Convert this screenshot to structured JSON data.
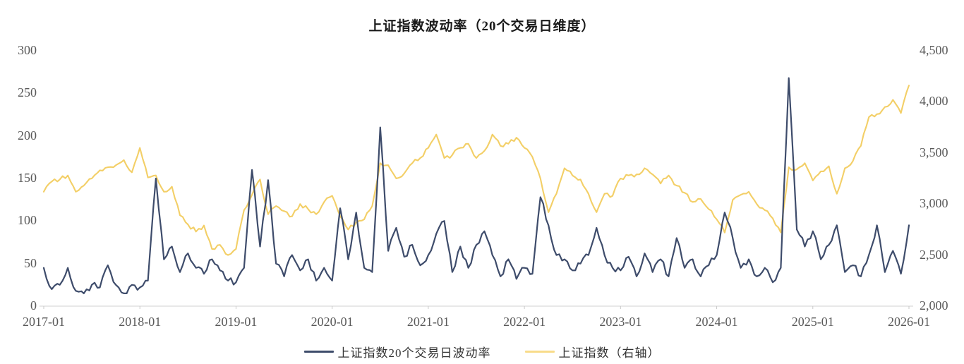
{
  "title": "上证指数波动率（20个交易日维度）",
  "colors": {
    "volatility_line": "#3E4C6B",
    "index_line": "#F3CF67",
    "index_legend_swatch": "#F8DC8A",
    "axis_text": "#595959",
    "axis_line": "#D9D9D9",
    "tick_mark": "#C9C9C9",
    "background": "#FFFFFF",
    "title_text": "#1A1A1A"
  },
  "chart_data": {
    "type": "line",
    "title": "上证指数波动率（20个交易日维度）",
    "grid": false,
    "legend_position": "bottom",
    "x_start": "2017-01",
    "x_end": "2026-01",
    "points_per_year": 12,
    "x_tick_labels": [
      "2017-01",
      "2018-01",
      "2019-01",
      "2020-01",
      "2021-01",
      "2022-01",
      "2023-01",
      "2024-01",
      "2025-01",
      "2026-01"
    ],
    "left_axis": {
      "side": "left",
      "range": [
        0,
        300
      ],
      "tick_step": 50,
      "tick_labels": [
        "0",
        "50",
        "100",
        "150",
        "200",
        "250",
        "300"
      ]
    },
    "right_axis": {
      "side": "right",
      "range": [
        2000,
        4500
      ],
      "tick_step": 500,
      "tick_labels": [
        "2,000",
        "2,500",
        "3,000",
        "3,500",
        "4,000",
        "4,500"
      ]
    },
    "series": [
      {
        "name": "上证指数20个交易日波动率",
        "axis": "left",
        "color": "#3E4C6B",
        "monthly_values": [
          45,
          20,
          25,
          45,
          18,
          15,
          25,
          22,
          48,
          25,
          15,
          25,
          22,
          30,
          150,
          55,
          70,
          40,
          62,
          45,
          38,
          55,
          42,
          30,
          28,
          45,
          160,
          70,
          148,
          50,
          35,
          60,
          42,
          55,
          30,
          45,
          30,
          115,
          55,
          110,
          45,
          40,
          210,
          65,
          92,
          58,
          72,
          48,
          60,
          85,
          100,
          40,
          70,
          45,
          72,
          88,
          60,
          35,
          55,
          32,
          45,
          38,
          128,
          95,
          60,
          55,
          42,
          50,
          60,
          92,
          60,
          45,
          42,
          58,
          35,
          62,
          40,
          55,
          35,
          80,
          45,
          55,
          35,
          48,
          60,
          110,
          80,
          45,
          55,
          35,
          45,
          28,
          45,
          268,
          90,
          70,
          88,
          55,
          72,
          95,
          40,
          48,
          35,
          60,
          95,
          40,
          65,
          38,
          95
        ]
      },
      {
        "name": "上证指数（右轴）",
        "axis": "right",
        "color": "#F3CF67",
        "monthly_values": [
          3120,
          3220,
          3240,
          3280,
          3120,
          3180,
          3250,
          3330,
          3360,
          3380,
          3430,
          3310,
          3550,
          3260,
          3280,
          3120,
          3170,
          2890,
          2800,
          2730,
          2790,
          2560,
          2600,
          2500,
          2560,
          2940,
          3090,
          3240,
          2900,
          2980,
          2930,
          2880,
          3000,
          2950,
          2900,
          3020,
          3080,
          2880,
          2750,
          2820,
          2850,
          2980,
          3400,
          3380,
          3250,
          3300,
          3400,
          3450,
          3550,
          3680,
          3450,
          3480,
          3550,
          3590,
          3450,
          3520,
          3680,
          3570,
          3590,
          3650,
          3550,
          3460,
          3250,
          2920,
          3100,
          3350,
          3280,
          3240,
          3100,
          2920,
          3100,
          3080,
          3250,
          3280,
          3290,
          3350,
          3290,
          3200,
          3280,
          3180,
          3110,
          3020,
          3050,
          2950,
          2850,
          2720,
          3040,
          3090,
          3120,
          3000,
          2940,
          2860,
          2720,
          3360,
          3340,
          3400,
          3230,
          3320,
          3370,
          3100,
          3350,
          3420,
          3570,
          3850,
          3880,
          3950,
          4020,
          3890,
          4160
        ]
      }
    ]
  }
}
